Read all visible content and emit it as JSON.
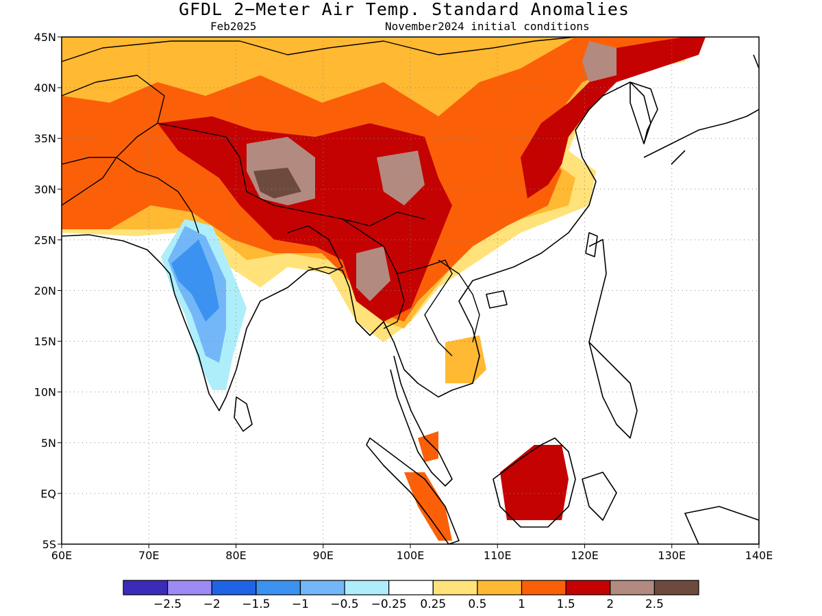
{
  "header": {
    "title": "GFDL 2−Meter Air Temp. Standard Anomalies",
    "target_month": "Feb2025",
    "initial_conditions": "November2024 initial conditions"
  },
  "axes": {
    "lon_ticks": [
      "60E",
      "70E",
      "80E",
      "90E",
      "100E",
      "110E",
      "120E",
      "130E",
      "140E"
    ],
    "lat_ticks": [
      "45N",
      "40N",
      "35N",
      "30N",
      "25N",
      "20N",
      "15N",
      "10N",
      "5N",
      "EQ",
      "5S"
    ]
  },
  "colorbar": {
    "colors": [
      "#3a2cb8",
      "#9d8af5",
      "#1f64e6",
      "#3c92f0",
      "#73b7f8",
      "#aeeefa",
      "#ffffff",
      "#ffe27a",
      "#ffb932",
      "#fb6008",
      "#c40202",
      "#b38a80",
      "#6e4a3e"
    ],
    "labels": [
      "−2.5",
      "−2",
      "−1.5",
      "−1",
      "−0.5",
      "−0.25",
      "0.25",
      "0.5",
      "1",
      "1.5",
      "2",
      "2.5"
    ]
  }
}
